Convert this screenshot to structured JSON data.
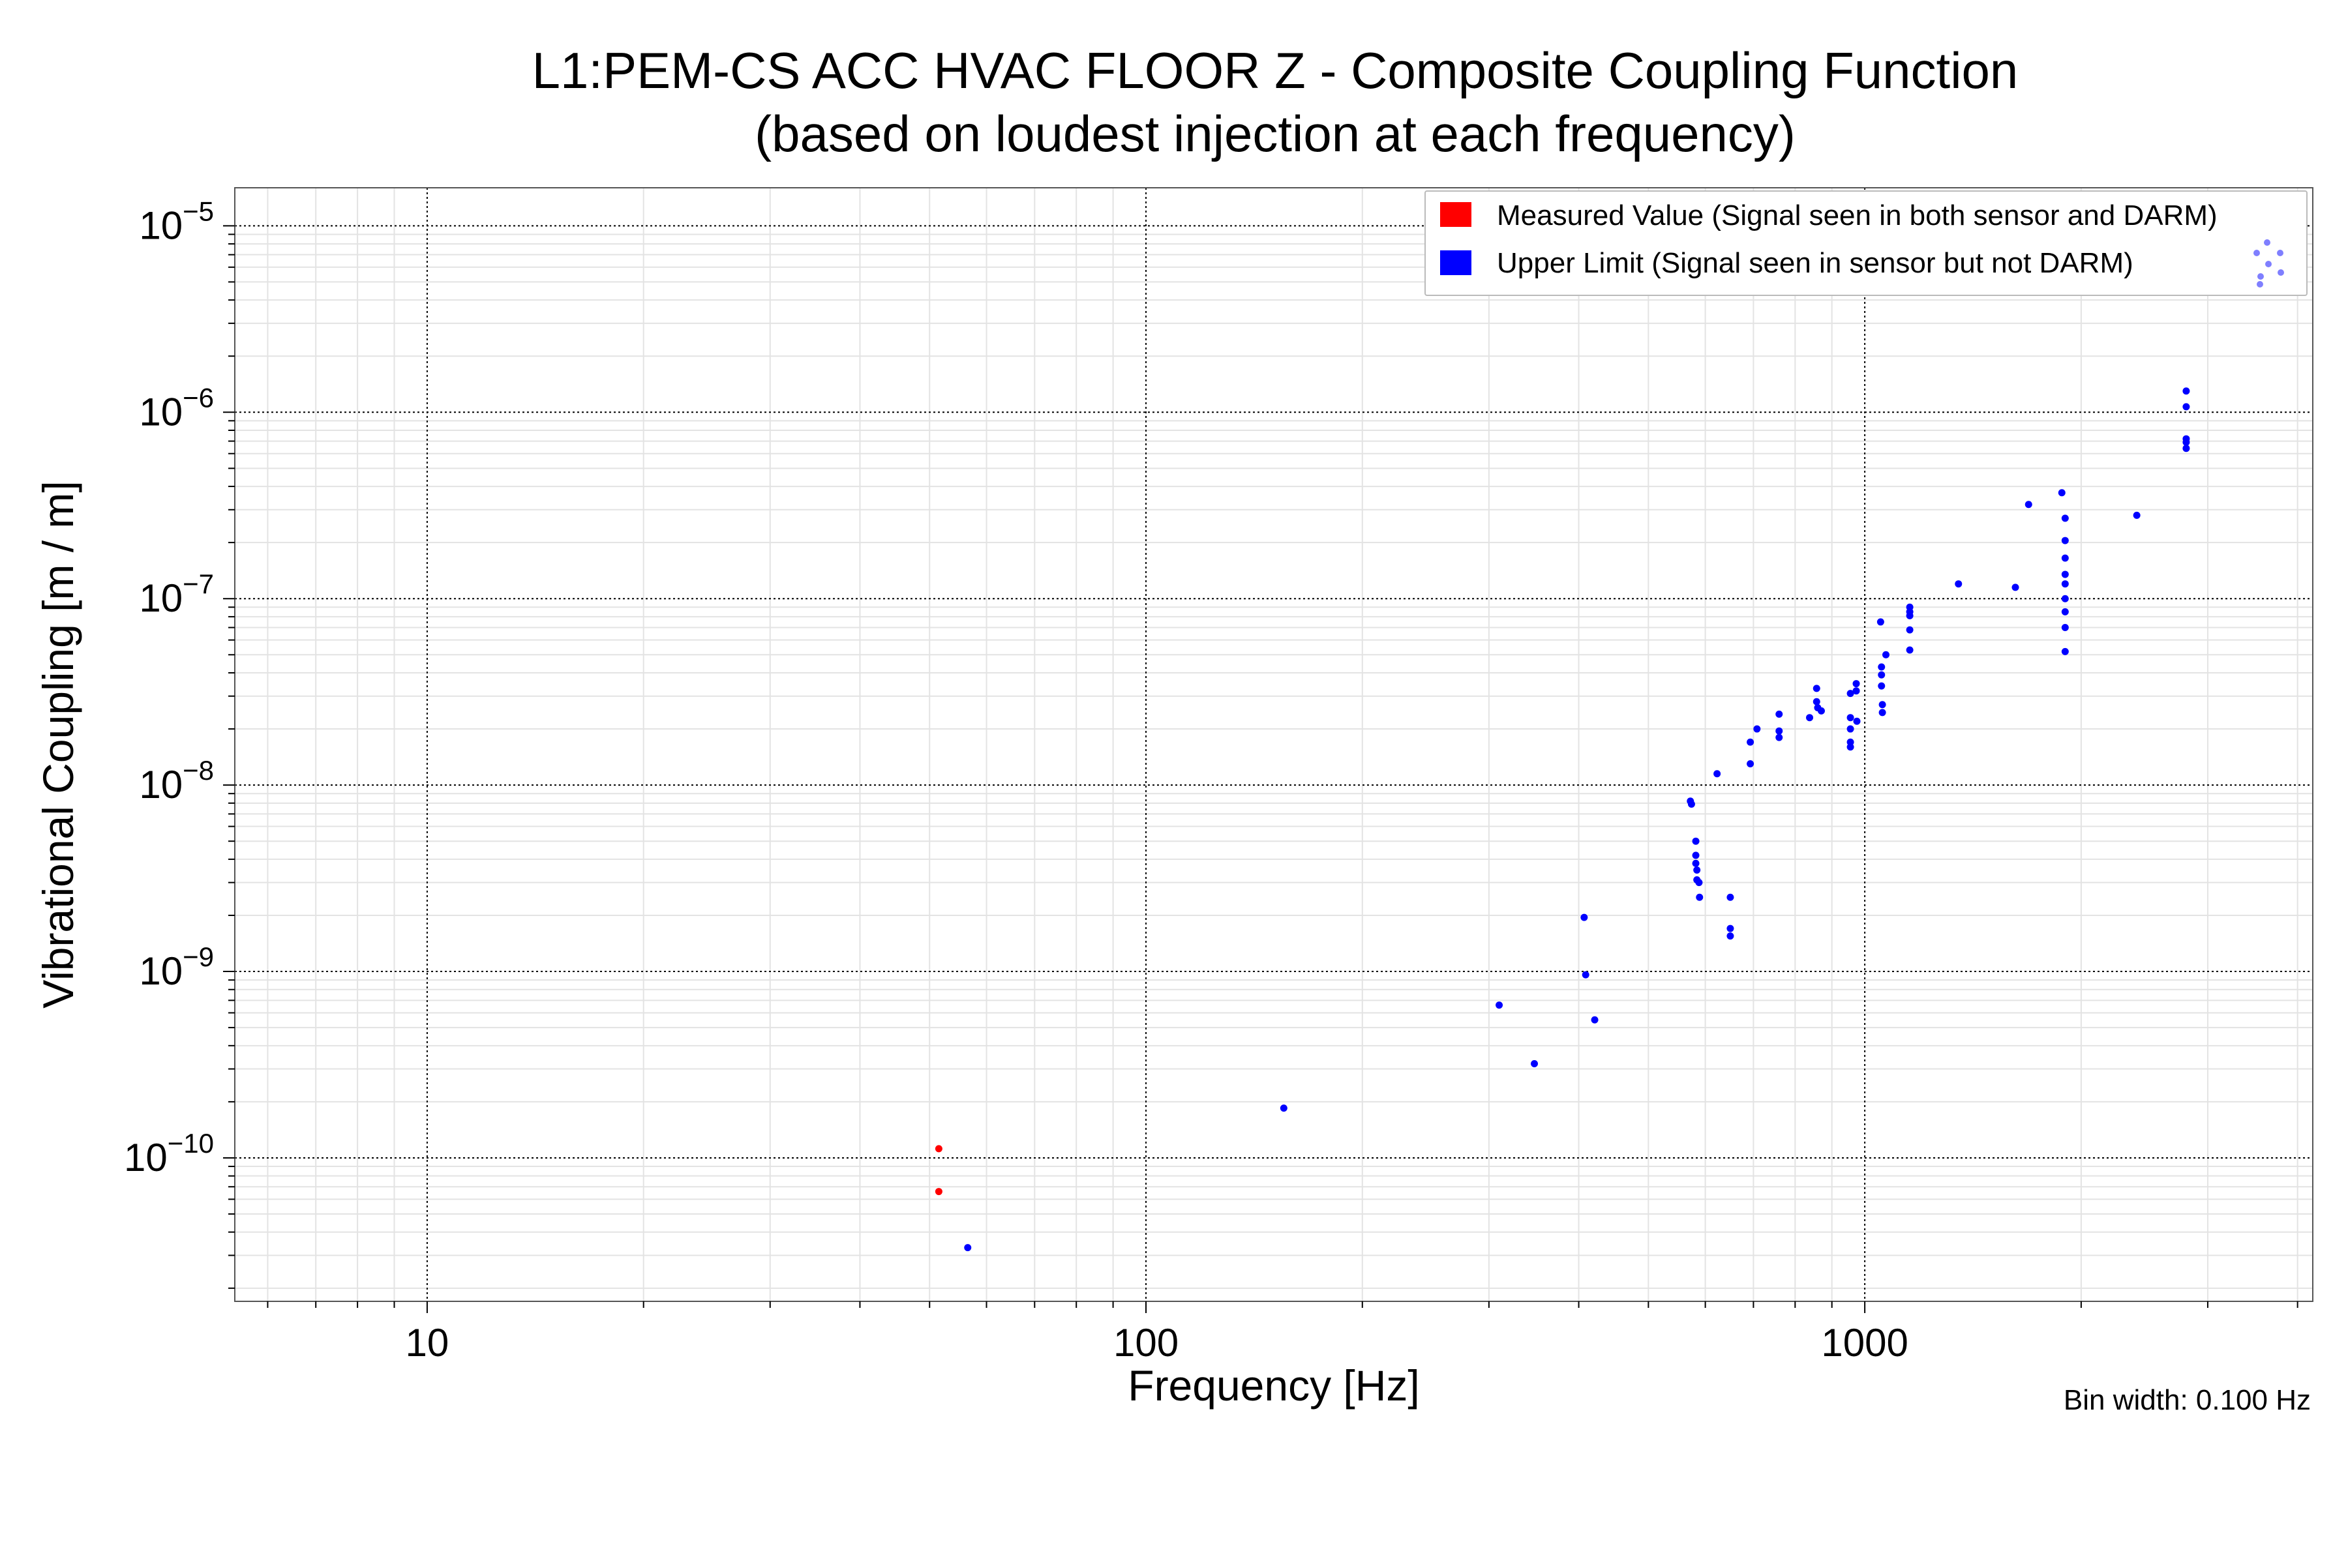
{
  "chart_data": {
    "type": "scatter",
    "title_line1": "L1:PEM-CS ACC HVAC FLOOR Z - Composite Coupling Function",
    "title_line2": "(based on loudest injection at each frequency)",
    "xlabel": "Frequency [Hz]",
    "ylabel": "Vibrational Coupling [m / m]",
    "x_scale": "log",
    "y_scale": "log",
    "xlim": [
      5.4,
      4200
    ],
    "ylim": [
      1.7e-11,
      1.6e-05
    ],
    "x_ticks": [
      {
        "value": 10,
        "label": "10"
      },
      {
        "value": 100,
        "label": "100"
      },
      {
        "value": 1000,
        "label": "1000"
      }
    ],
    "y_ticks": [
      {
        "value": 1e-10,
        "base": "10",
        "exp": "−10"
      },
      {
        "value": 1e-09,
        "base": "10",
        "exp": "−9"
      },
      {
        "value": 1e-08,
        "base": "10",
        "exp": "−8"
      },
      {
        "value": 1e-07,
        "base": "10",
        "exp": "−7"
      },
      {
        "value": 1e-06,
        "base": "10",
        "exp": "−6"
      },
      {
        "value": 1e-05,
        "base": "10",
        "exp": "−5"
      }
    ],
    "grid": true,
    "legend_position": "top-right",
    "footnote": "Bin width: 0.100 Hz",
    "series": [
      {
        "name": "Measured Value (Signal seen in both sensor and DARM)",
        "color": "#ff0000",
        "points": [
          [
            51.5,
            1.12e-10
          ],
          [
            51.5,
            6.6e-11
          ]
        ]
      },
      {
        "name": "Upper Limit (Signal seen in sensor but not DARM)",
        "color": "#0000ff",
        "points": [
          [
            56.5,
            3.3e-11
          ],
          [
            155.5,
            1.85e-10
          ],
          [
            310,
            6.6e-10
          ],
          [
            347,
            3.2e-10
          ],
          [
            407,
            1.95e-09
          ],
          [
            409,
            9.6e-10
          ],
          [
            421,
            5.5e-10
          ],
          [
            572,
            8.2e-09
          ],
          [
            574,
            7.9e-09
          ],
          [
            582,
            5e-09
          ],
          [
            582,
            4.2e-09
          ],
          [
            582,
            3.8e-09
          ],
          [
            584,
            3.5e-09
          ],
          [
            584,
            3.1e-09
          ],
          [
            588,
            3e-09
          ],
          [
            589,
            2.5e-09
          ],
          [
            650,
            2.5e-09
          ],
          [
            650,
            1.7e-09
          ],
          [
            650,
            1.55e-09
          ],
          [
            623,
            1.15e-08
          ],
          [
            693,
            1.7e-08
          ],
          [
            693,
            1.3e-08
          ],
          [
            708,
            2e-08
          ],
          [
            760,
            2.4e-08
          ],
          [
            760,
            1.95e-08
          ],
          [
            760,
            1.8e-08
          ],
          [
            838,
            2.3e-08
          ],
          [
            857,
            3.3e-08
          ],
          [
            857,
            2.8e-08
          ],
          [
            860,
            2.6e-08
          ],
          [
            870,
            2.5e-08
          ],
          [
            955,
            3.1e-08
          ],
          [
            955,
            2.3e-08
          ],
          [
            955,
            2e-08
          ],
          [
            955,
            1.7e-08
          ],
          [
            955,
            1.6e-08
          ],
          [
            973,
            3.5e-08
          ],
          [
            973,
            3.2e-08
          ],
          [
            975,
            2.2e-08
          ],
          [
            1052,
            7.5e-08
          ],
          [
            1055,
            4.3e-08
          ],
          [
            1055,
            3.9e-08
          ],
          [
            1055,
            3.4e-08
          ],
          [
            1058,
            2.7e-08
          ],
          [
            1058,
            2.45e-08
          ],
          [
            1070,
            5e-08
          ],
          [
            1155,
            9e-08
          ],
          [
            1155,
            8.5e-08
          ],
          [
            1155,
            8.1e-08
          ],
          [
            1155,
            6.8e-08
          ],
          [
            1155,
            5.3e-08
          ],
          [
            1350,
            1.2e-07
          ],
          [
            1620,
            1.15e-07
          ],
          [
            1690,
            3.2e-07
          ],
          [
            1880,
            3.7e-07
          ],
          [
            1900,
            2.7e-07
          ],
          [
            1900,
            2.05e-07
          ],
          [
            1900,
            1.65e-07
          ],
          [
            1900,
            1.35e-07
          ],
          [
            1900,
            1.2e-07
          ],
          [
            1900,
            1e-07
          ],
          [
            1900,
            8.5e-08
          ],
          [
            1900,
            7e-08
          ],
          [
            1900,
            5.2e-08
          ],
          [
            2390,
            2.8e-07
          ],
          [
            2800,
            1.3e-06
          ],
          [
            2800,
            1.07e-06
          ],
          [
            2800,
            7.2e-07
          ],
          [
            2800,
            6.9e-07
          ],
          [
            2800,
            6.4e-07
          ]
        ]
      }
    ]
  }
}
